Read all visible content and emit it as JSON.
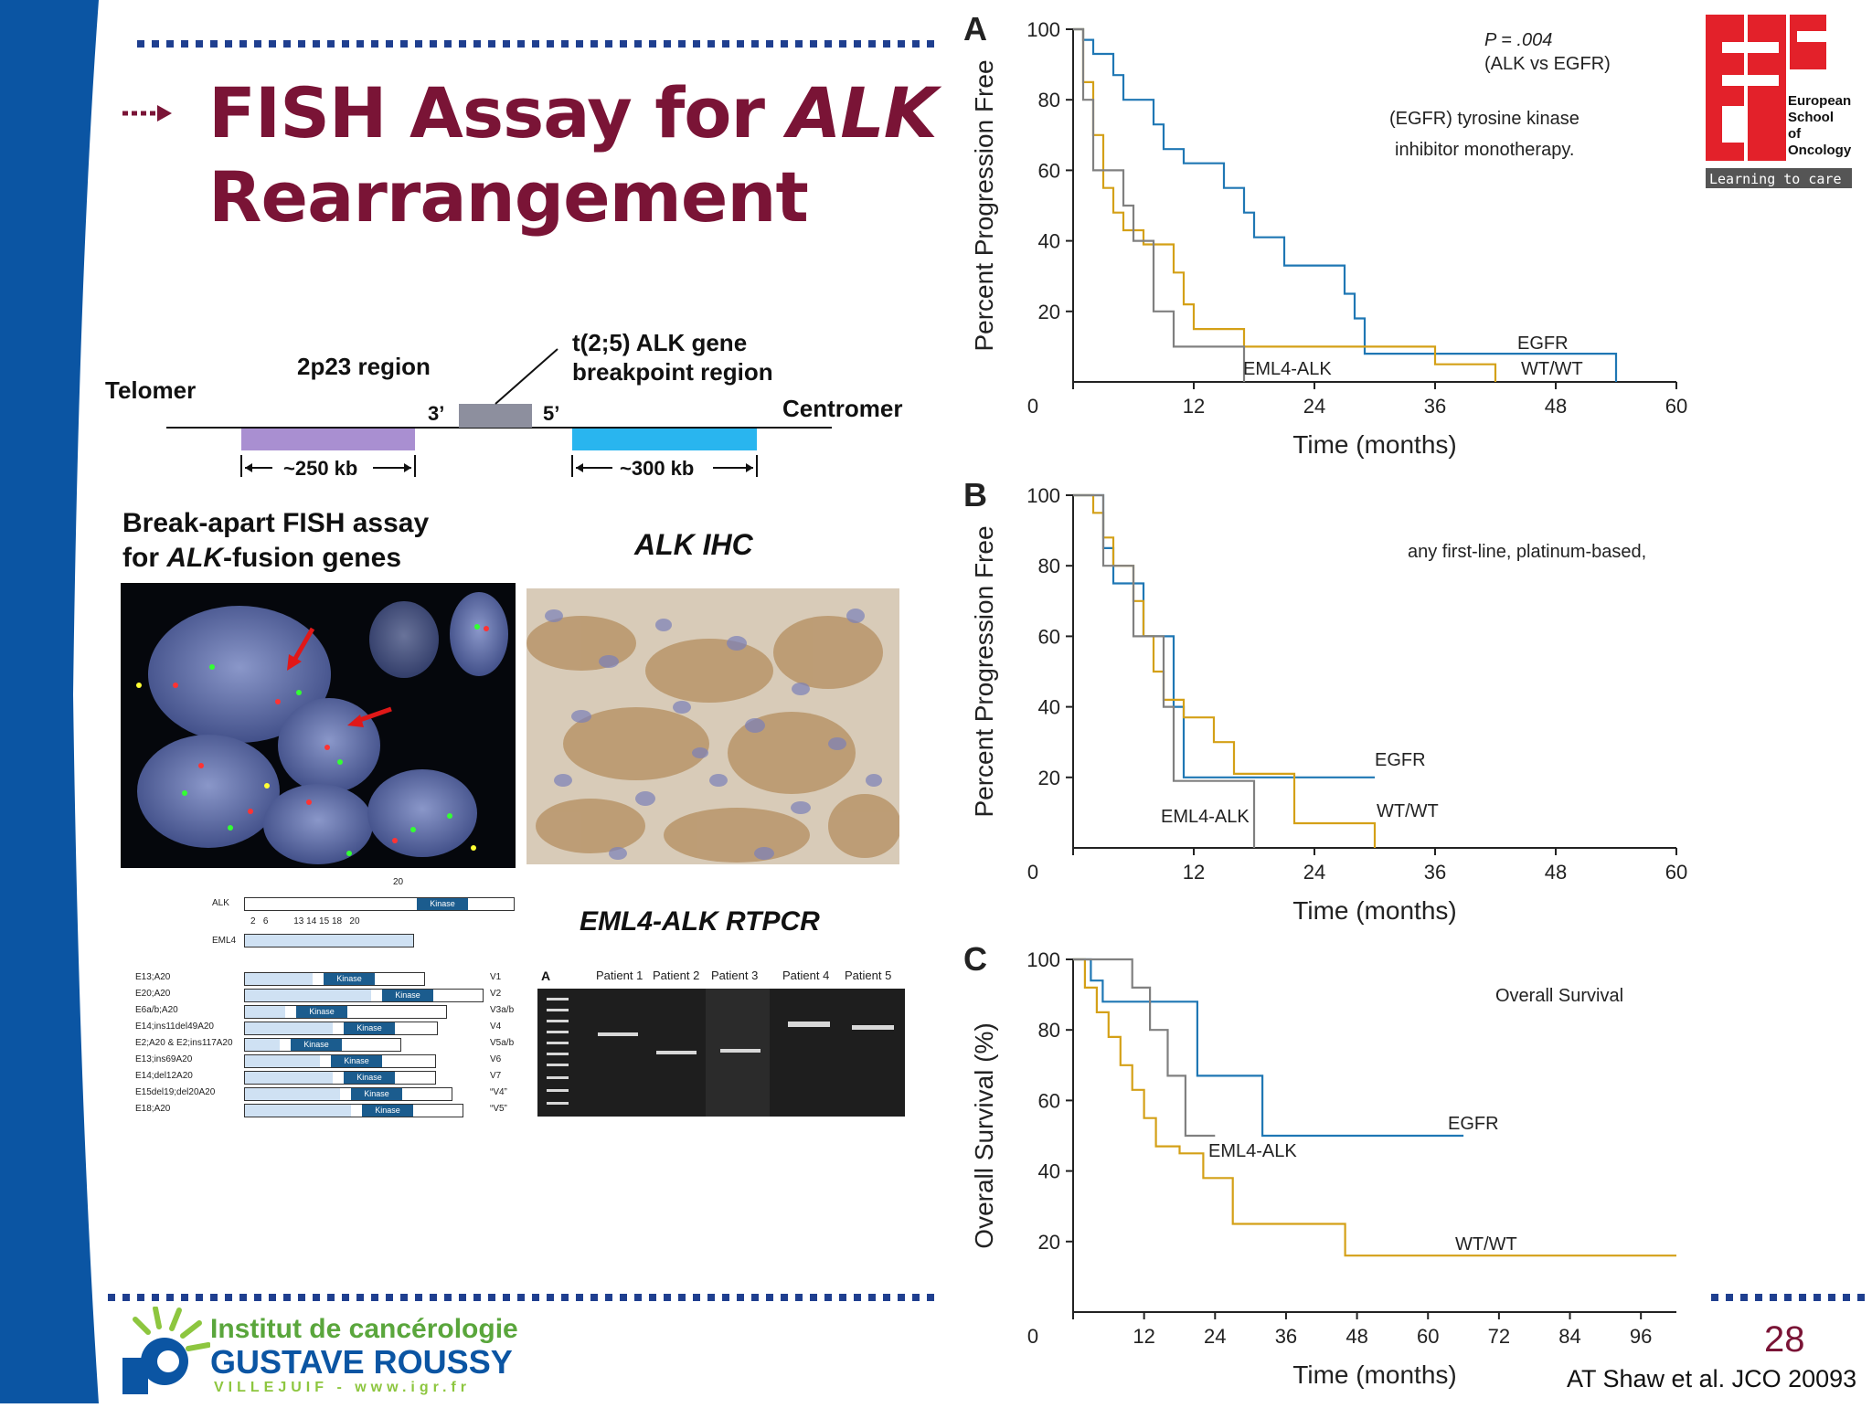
{
  "slide": {
    "title_line1_plain": "FISH Assay for ",
    "title_line1_italic": "ALK",
    "title_line2": "Rearrangement",
    "page_number": "28",
    "citation": "AT Shaw et al. JCO 20093",
    "colors": {
      "title": "#7a1436",
      "dots": "#1f3f8f",
      "left_band": "#0b55a3"
    }
  },
  "gene_map": {
    "telomer": "Telomer",
    "region": "2p23 region",
    "translocation_line1": "t(2;5) ALK gene",
    "translocation_line2": "breakpoint region",
    "three_prime": "3’",
    "five_prime": "5’",
    "centromer": "Centromer",
    "probe_left_size": "~250 kb",
    "probe_right_size": "~300 kb"
  },
  "panels": {
    "fish_title_line1": "Break-apart FISH assay",
    "fish_title_line2_italic": "ALK",
    "fish_title_line2_rest": "-fusion genes",
    "fish_title_line2_prefix": "for ",
    "ihc_title": "ALK IHC",
    "rtpcr_title": "EML4-ALK RTPCR"
  },
  "variants": {
    "alk_label": "ALK",
    "alk_exon": "20",
    "eml4_label": "EML4",
    "eml4_exons": "2   6          13 14 15 18   20",
    "kinase": "Kinase",
    "rows": [
      {
        "name": "E13;A20",
        "code": "V1"
      },
      {
        "name": "E20;A20",
        "code": "V2"
      },
      {
        "name": "E6a/b;A20",
        "code": "V3a/b"
      },
      {
        "name": "E14;ins11del49A20",
        "code": "V4"
      },
      {
        "name": "E2;A20 & E2;ins117A20",
        "code": "V5a/b"
      },
      {
        "name": "E13;ins69A20",
        "code": "V6"
      },
      {
        "name": "E14;del12A20",
        "code": "V7"
      },
      {
        "name": "E15del19;del20A20",
        "code": "“V4”"
      },
      {
        "name": "E18;A20",
        "code": "“V5”"
      }
    ]
  },
  "gel": {
    "panel_letter": "A",
    "lanes": [
      "Patient 1",
      "Patient 2",
      "Patient 3",
      "Patient 4",
      "Patient 5"
    ]
  },
  "logo_eso": {
    "line1": "European",
    "line2": "School",
    "line3": "of",
    "line4": "Oncology",
    "tagline": "Learning to care"
  },
  "logo_igr": {
    "line1": "Institut de cancérologie",
    "line2": "GUSTAVE ROUSSY",
    "line3": "VILLEJUIF - www.igr.fr"
  },
  "chart_data": [
    {
      "type": "line",
      "panel": "A",
      "ylabel": "Percent Progression Free",
      "xlabel": "Time (months)",
      "xlim": [
        0,
        60
      ],
      "ylim": [
        0,
        100
      ],
      "xticks": [
        0,
        12,
        24,
        36,
        48,
        60
      ],
      "yticks": [
        20,
        40,
        60,
        80,
        100
      ],
      "annotations": [
        "P = .004",
        "(ALK vs EGFR)",
        "(EGFR) tyrosine kinase",
        "inhibitor monotherapy."
      ],
      "series": [
        {
          "name": "EGFR",
          "color": "#1f77b4",
          "points": [
            [
              0,
              100
            ],
            [
              1,
              100
            ],
            [
              1,
              97
            ],
            [
              2,
              97
            ],
            [
              2,
              93
            ],
            [
              4,
              93
            ],
            [
              4,
              87
            ],
            [
              5,
              87
            ],
            [
              5,
              80
            ],
            [
              8,
              80
            ],
            [
              8,
              73
            ],
            [
              9,
              73
            ],
            [
              9,
              66
            ],
            [
              11,
              66
            ],
            [
              11,
              62
            ],
            [
              15,
              62
            ],
            [
              15,
              55
            ],
            [
              17,
              55
            ],
            [
              17,
              48
            ],
            [
              18,
              48
            ],
            [
              18,
              41
            ],
            [
              21,
              41
            ],
            [
              21,
              33
            ],
            [
              27,
              33
            ],
            [
              27,
              25
            ],
            [
              28,
              25
            ],
            [
              28,
              18
            ],
            [
              29,
              18
            ],
            [
              29,
              8
            ],
            [
              54,
              8
            ],
            [
              54,
              0
            ]
          ]
        },
        {
          "name": "WT/WT",
          "color": "#d4a017",
          "points": [
            [
              0,
              100
            ],
            [
              1,
              100
            ],
            [
              1,
              85
            ],
            [
              2,
              85
            ],
            [
              2,
              70
            ],
            [
              3,
              70
            ],
            [
              3,
              55
            ],
            [
              4,
              55
            ],
            [
              4,
              48
            ],
            [
              5,
              48
            ],
            [
              5,
              43
            ],
            [
              7,
              43
            ],
            [
              7,
              39
            ],
            [
              10,
              39
            ],
            [
              10,
              31
            ],
            [
              11,
              31
            ],
            [
              11,
              22
            ],
            [
              12,
              22
            ],
            [
              12,
              15
            ],
            [
              17,
              15
            ],
            [
              17,
              10
            ],
            [
              36,
              10
            ],
            [
              36,
              5
            ],
            [
              42,
              5
            ],
            [
              42,
              0
            ]
          ]
        },
        {
          "name": "EML4-ALK",
          "color": "#808080",
          "points": [
            [
              0,
              100
            ],
            [
              1,
              100
            ],
            [
              1,
              80
            ],
            [
              2,
              80
            ],
            [
              2,
              60
            ],
            [
              5,
              60
            ],
            [
              5,
              50
            ],
            [
              6,
              50
            ],
            [
              6,
              40
            ],
            [
              8,
              40
            ],
            [
              8,
              20
            ],
            [
              10,
              20
            ],
            [
              10,
              10
            ],
            [
              17,
              10
            ],
            [
              17,
              0
            ]
          ]
        }
      ],
      "series_labels": [
        "EGFR",
        "WT/WT",
        "EML4-ALK"
      ]
    },
    {
      "type": "line",
      "panel": "B",
      "ylabel": "Percent Progression Free",
      "xlabel": "Time (months)",
      "xlim": [
        0,
        60
      ],
      "ylim": [
        0,
        100
      ],
      "xticks": [
        0,
        12,
        24,
        36,
        48,
        60
      ],
      "yticks": [
        20,
        40,
        60,
        80,
        100
      ],
      "annotations": [
        "any first-line, platinum-based,"
      ],
      "series": [
        {
          "name": "EGFR",
          "color": "#1f77b4",
          "points": [
            [
              0,
              100
            ],
            [
              3,
              100
            ],
            [
              3,
              85
            ],
            [
              4,
              85
            ],
            [
              4,
              75
            ],
            [
              7,
              75
            ],
            [
              7,
              60
            ],
            [
              10,
              60
            ],
            [
              10,
              40
            ],
            [
              11,
              40
            ],
            [
              11,
              20
            ],
            [
              30,
              20
            ]
          ]
        },
        {
          "name": "WT/WT",
          "color": "#d4a017",
          "points": [
            [
              0,
              100
            ],
            [
              2,
              100
            ],
            [
              2,
              95
            ],
            [
              3,
              95
            ],
            [
              3,
              88
            ],
            [
              4,
              88
            ],
            [
              4,
              80
            ],
            [
              6,
              80
            ],
            [
              6,
              70
            ],
            [
              7,
              70
            ],
            [
              7,
              60
            ],
            [
              8,
              60
            ],
            [
              8,
              50
            ],
            [
              9,
              50
            ],
            [
              9,
              42
            ],
            [
              11,
              42
            ],
            [
              11,
              37
            ],
            [
              14,
              37
            ],
            [
              14,
              30
            ],
            [
              16,
              30
            ],
            [
              16,
              21
            ],
            [
              22,
              21
            ],
            [
              22,
              7
            ],
            [
              30,
              7
            ],
            [
              30,
              0
            ]
          ]
        },
        {
          "name": "EML4-ALK",
          "color": "#808080",
          "points": [
            [
              0,
              100
            ],
            [
              3,
              100
            ],
            [
              3,
              80
            ],
            [
              6,
              80
            ],
            [
              6,
              60
            ],
            [
              9,
              60
            ],
            [
              9,
              40
            ],
            [
              10,
              40
            ],
            [
              10,
              19
            ],
            [
              18,
              19
            ],
            [
              18,
              0
            ]
          ]
        }
      ],
      "series_labels": [
        "EGFR",
        "WT/WT",
        "EML4-ALK"
      ]
    },
    {
      "type": "line",
      "panel": "C",
      "ylabel": "Overall Survival (%)",
      "xlabel": "Time (months)",
      "xlim": [
        0,
        102
      ],
      "ylim": [
        0,
        100
      ],
      "xticks": [
        0,
        12,
        24,
        36,
        48,
        60,
        72,
        84,
        96
      ],
      "yticks": [
        20,
        40,
        60,
        80,
        100
      ],
      "annotations": [
        "Overall Survival"
      ],
      "series": [
        {
          "name": "EGFR",
          "color": "#1f77b4",
          "points": [
            [
              0,
              100
            ],
            [
              3,
              100
            ],
            [
              3,
              94
            ],
            [
              5,
              94
            ],
            [
              5,
              88
            ],
            [
              21,
              88
            ],
            [
              21,
              67
            ],
            [
              32,
              67
            ],
            [
              32,
              50
            ],
            [
              66,
              50
            ]
          ]
        },
        {
          "name": "WT/WT",
          "color": "#d4a017",
          "points": [
            [
              0,
              100
            ],
            [
              2,
              100
            ],
            [
              2,
              92
            ],
            [
              4,
              92
            ],
            [
              4,
              85
            ],
            [
              6,
              85
            ],
            [
              6,
              78
            ],
            [
              8,
              78
            ],
            [
              8,
              70
            ],
            [
              10,
              70
            ],
            [
              10,
              63
            ],
            [
              12,
              63
            ],
            [
              12,
              55
            ],
            [
              14,
              55
            ],
            [
              14,
              47
            ],
            [
              18,
              47
            ],
            [
              18,
              45
            ],
            [
              22,
              45
            ],
            [
              22,
              38
            ],
            [
              27,
              38
            ],
            [
              27,
              25
            ],
            [
              46,
              25
            ],
            [
              46,
              16
            ],
            [
              102,
              16
            ]
          ]
        },
        {
          "name": "EML4-ALK",
          "color": "#808080",
          "points": [
            [
              0,
              100
            ],
            [
              10,
              100
            ],
            [
              10,
              92
            ],
            [
              13,
              92
            ],
            [
              13,
              80
            ],
            [
              16,
              80
            ],
            [
              16,
              67
            ],
            [
              19,
              67
            ],
            [
              19,
              50
            ],
            [
              24,
              50
            ]
          ]
        }
      ],
      "series_labels": [
        "EGFR",
        "WT/WT",
        "EML4-ALK"
      ]
    }
  ]
}
